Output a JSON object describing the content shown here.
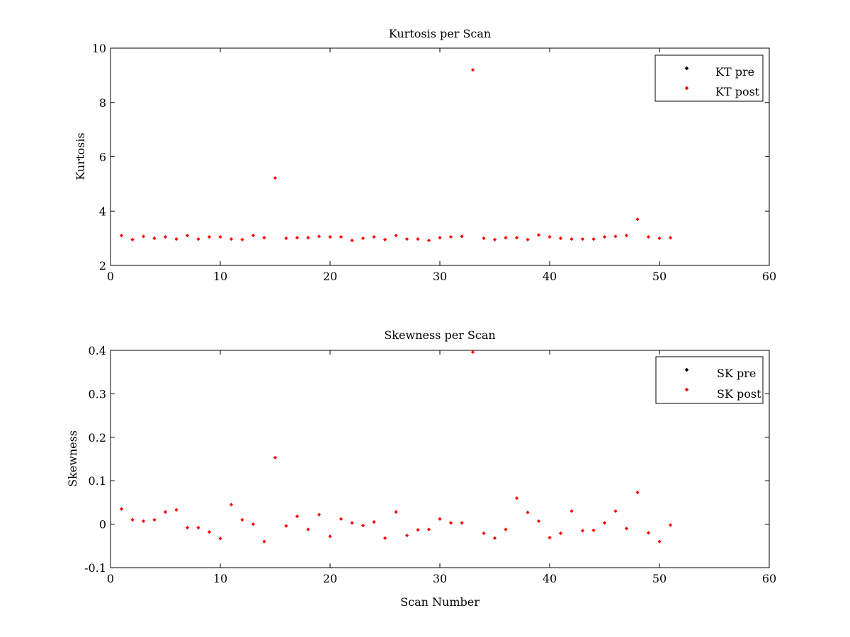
{
  "chart_data": [
    {
      "type": "scatter",
      "title": "Kurtosis per Scan",
      "xlabel": "",
      "ylabel": "Kurtosis",
      "xlim": [
        0,
        60
      ],
      "ylim": [
        2,
        10
      ],
      "xticks": [
        0,
        10,
        20,
        30,
        40,
        50,
        60
      ],
      "yticks": [
        2,
        4,
        6,
        8,
        10
      ],
      "xtick_labels": [
        "0",
        "10",
        "20",
        "30",
        "40",
        "50",
        "60"
      ],
      "ytick_labels": [
        "2",
        "4",
        "6",
        "8",
        "10"
      ],
      "grid": false,
      "legend_position": "top-right",
      "legend": [
        {
          "label": "KT pre",
          "color": "#000000"
        },
        {
          "label": "KT post",
          "color": "#ff0000"
        }
      ],
      "series": [
        {
          "name": "KT post",
          "color": "#ff0000",
          "x": [
            1,
            2,
            3,
            4,
            5,
            6,
            7,
            8,
            9,
            10,
            11,
            12,
            13,
            14,
            15,
            16,
            17,
            18,
            19,
            20,
            21,
            22,
            23,
            24,
            25,
            26,
            27,
            28,
            29,
            30,
            31,
            32,
            33,
            34,
            35,
            36,
            37,
            38,
            39,
            40,
            41,
            42,
            43,
            44,
            45,
            46,
            47,
            48,
            49,
            50,
            51
          ],
          "y": [
            3.1,
            2.95,
            3.07,
            3.0,
            3.05,
            2.97,
            3.1,
            2.97,
            3.05,
            3.05,
            2.97,
            2.95,
            3.1,
            3.02,
            5.22,
            3.0,
            3.02,
            3.02,
            3.07,
            3.05,
            3.05,
            2.92,
            3.0,
            3.05,
            2.95,
            3.1,
            2.97,
            2.97,
            2.92,
            3.02,
            3.05,
            3.07,
            9.2,
            3.0,
            2.95,
            3.02,
            3.02,
            2.95,
            3.12,
            3.05,
            3.0,
            2.97,
            2.97,
            2.97,
            3.05,
            3.07,
            3.1,
            3.7,
            3.05,
            3.0,
            3.02
          ]
        }
      ]
    },
    {
      "type": "scatter",
      "title": "Skewness per Scan",
      "xlabel": "Scan Number",
      "ylabel": "Skewness",
      "xlim": [
        0,
        60
      ],
      "ylim": [
        -0.1,
        0.4
      ],
      "xticks": [
        0,
        10,
        20,
        30,
        40,
        50,
        60
      ],
      "yticks": [
        -0.1,
        0,
        0.1,
        0.2,
        0.3,
        0.4
      ],
      "xtick_labels": [
        "0",
        "10",
        "20",
        "30",
        "40",
        "50",
        "60"
      ],
      "ytick_labels": [
        "-0.1",
        "0",
        "0.1",
        "0.2",
        "0.3",
        "0.4"
      ],
      "grid": false,
      "legend_position": "top-right",
      "legend": [
        {
          "label": "SK pre",
          "color": "#000000"
        },
        {
          "label": "SK post",
          "color": "#ff0000"
        }
      ],
      "series": [
        {
          "name": "SK post",
          "color": "#ff0000",
          "x": [
            1,
            2,
            3,
            4,
            5,
            6,
            7,
            8,
            9,
            10,
            11,
            12,
            13,
            14,
            15,
            16,
            17,
            18,
            19,
            20,
            21,
            22,
            23,
            24,
            25,
            26,
            27,
            28,
            29,
            30,
            31,
            32,
            33,
            34,
            35,
            36,
            37,
            38,
            39,
            40,
            41,
            42,
            43,
            44,
            45,
            46,
            47,
            48,
            49,
            50,
            51
          ],
          "y": [
            0.035,
            0.01,
            0.007,
            0.01,
            0.028,
            0.033,
            -0.008,
            -0.008,
            -0.018,
            -0.033,
            0.045,
            0.01,
            0.0,
            -0.04,
            0.153,
            -0.004,
            0.018,
            -0.012,
            0.022,
            -0.028,
            0.012,
            0.003,
            -0.003,
            0.005,
            -0.032,
            0.028,
            -0.026,
            -0.013,
            -0.012,
            0.012,
            0.003,
            0.003,
            0.396,
            -0.021,
            -0.032,
            -0.012,
            0.06,
            0.027,
            0.007,
            -0.031,
            -0.021,
            0.03,
            -0.015,
            -0.014,
            0.003,
            0.03,
            -0.01,
            0.073,
            -0.02,
            -0.04,
            -0.002
          ]
        }
      ]
    }
  ]
}
